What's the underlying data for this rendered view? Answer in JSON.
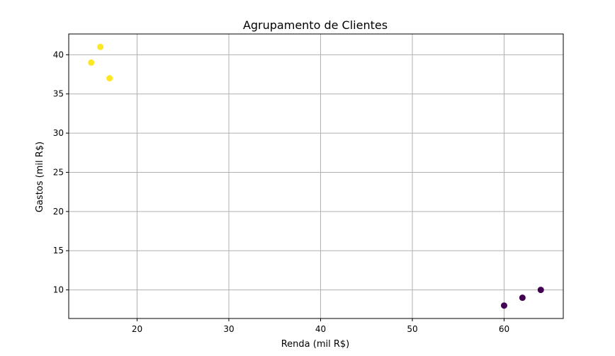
{
  "chart_data": {
    "type": "scatter",
    "title": "Agrupamento de Clientes",
    "xlabel": "Renda (mil R$)",
    "ylabel": "Gastos (mil R$)",
    "xlim": [
      12.55,
      66.45
    ],
    "ylim": [
      6.35,
      42.65
    ],
    "xticks": [
      20,
      30,
      40,
      50,
      60
    ],
    "yticks": [
      10,
      15,
      20,
      25,
      30,
      35,
      40
    ],
    "grid": true,
    "series": [
      {
        "color": "#fde725",
        "points": [
          {
            "x": 15,
            "y": 39
          },
          {
            "x": 16,
            "y": 41
          },
          {
            "x": 17,
            "y": 37
          }
        ]
      },
      {
        "color": "#440154",
        "points": [
          {
            "x": 60,
            "y": 8
          },
          {
            "x": 62,
            "y": 9
          },
          {
            "x": 64,
            "y": 10
          }
        ]
      }
    ]
  }
}
